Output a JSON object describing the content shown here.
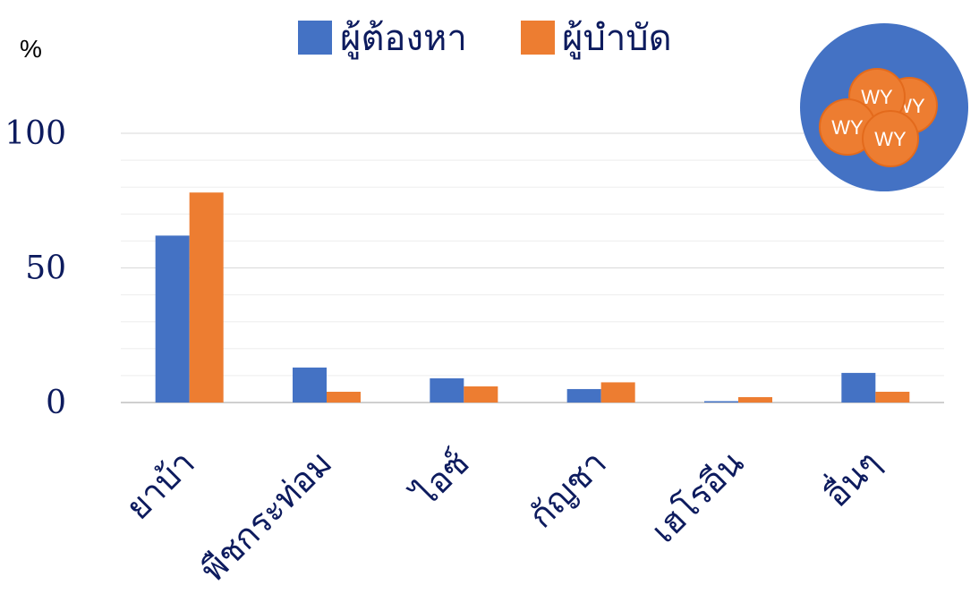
{
  "chart_data": {
    "type": "bar",
    "title": "",
    "ylabel": "%",
    "xlabel": "",
    "ylim": [
      0,
      100
    ],
    "yticks": [
      0,
      50,
      100
    ],
    "grid": true,
    "legend_placement": "top",
    "categories": [
      "ยาบ้า",
      "พืชกระท่อม",
      "ไอซ์",
      "กัญชา",
      "เฮโรอีน",
      "อื่นๆ"
    ],
    "series": [
      {
        "name": "ผู้ต้องหา",
        "color": "#4472c4",
        "values": [
          62,
          13,
          9,
          5,
          0.5,
          11
        ]
      },
      {
        "name": "ผู้บำบัด",
        "color": "#ed7d31",
        "values": [
          78,
          4,
          6,
          7.5,
          2,
          4
        ]
      }
    ]
  },
  "logo": {
    "circle_color": "#4472c4",
    "pill_color": "#ed7d31",
    "pill_text": [
      "WY",
      "WY",
      "WY",
      "WY"
    ]
  }
}
